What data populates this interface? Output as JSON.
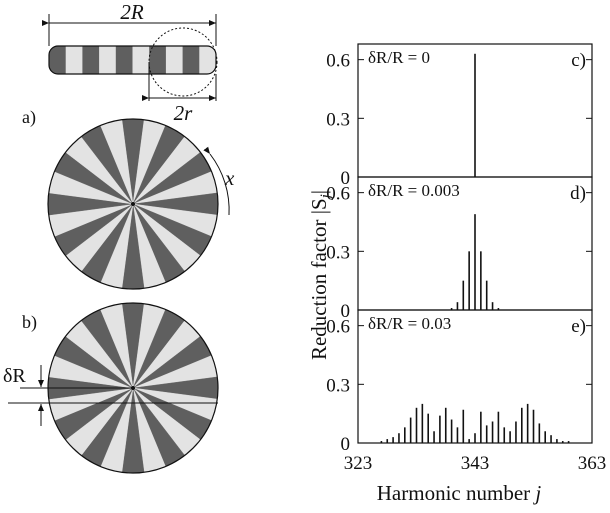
{
  "colors": {
    "dark_sector": "#5f5f5f",
    "light_sector": "#e3e3e3",
    "axis": "#111111",
    "bar": "#111111"
  },
  "schematic": {
    "strip_label": "2R",
    "circle_label": "2r",
    "panel_a_label": "a)",
    "panel_a_arrow_label": "x",
    "panel_b_label": "b)",
    "panel_b_offset_label": "δR",
    "sectors": 24,
    "offset_fraction_of_radius": 0.0
  },
  "chart_data": [
    {
      "type": "bar",
      "panel_label": "c)",
      "annotation": "δR/R = 0",
      "x_ticks": [
        323,
        343,
        363
      ],
      "xlim": [
        323,
        363
      ],
      "ylim": [
        0,
        0.68
      ],
      "y_ticks": [
        0,
        0.3,
        0.6
      ],
      "y_tick_labels": [
        "0",
        "0.3",
        "0.6"
      ],
      "x": [
        343
      ],
      "values": [
        0.63
      ]
    },
    {
      "type": "bar",
      "panel_label": "d)",
      "annotation": "δR/R = 0.003",
      "x_ticks": [
        323,
        343,
        363
      ],
      "xlim": [
        323,
        363
      ],
      "ylim": [
        0,
        0.68
      ],
      "y_ticks": [
        0,
        0.3,
        0.6
      ],
      "y_tick_labels": [
        "0",
        "0.3",
        "0.6"
      ],
      "x": [
        339,
        340,
        341,
        342,
        343,
        344,
        345,
        346,
        347
      ],
      "values": [
        0.01,
        0.04,
        0.15,
        0.3,
        0.49,
        0.3,
        0.15,
        0.04,
        0.01
      ]
    },
    {
      "type": "bar",
      "panel_label": "e)",
      "annotation": "δR/R = 0.03",
      "x_ticks": [
        323,
        343,
        363
      ],
      "xlim": [
        323,
        363
      ],
      "ylim": [
        0,
        0.68
      ],
      "y_ticks": [
        0,
        0.3,
        0.6
      ],
      "y_tick_labels": [
        "0",
        "0.3",
        "0.6"
      ],
      "x": [
        327,
        328,
        329,
        330,
        331,
        332,
        333,
        334,
        335,
        336,
        337,
        338,
        339,
        340,
        341,
        342,
        343,
        344,
        345,
        346,
        347,
        348,
        349,
        350,
        351,
        352,
        353,
        354,
        355,
        356,
        357,
        358,
        359
      ],
      "values": [
        0.01,
        0.02,
        0.03,
        0.05,
        0.08,
        0.13,
        0.18,
        0.2,
        0.15,
        0.06,
        0.14,
        0.18,
        0.12,
        0.08,
        0.17,
        0.02,
        0.05,
        0.16,
        0.09,
        0.11,
        0.16,
        0.08,
        0.06,
        0.11,
        0.18,
        0.2,
        0.17,
        0.1,
        0.06,
        0.04,
        0.02,
        0.01,
        0.01
      ]
    }
  ],
  "y_axis_label": "Reduction factor |S",
  "y_axis_label_sub": "j",
  "y_axis_label_end": "|",
  "x_axis_label": "Harmonic number ",
  "x_axis_label_var": "j"
}
